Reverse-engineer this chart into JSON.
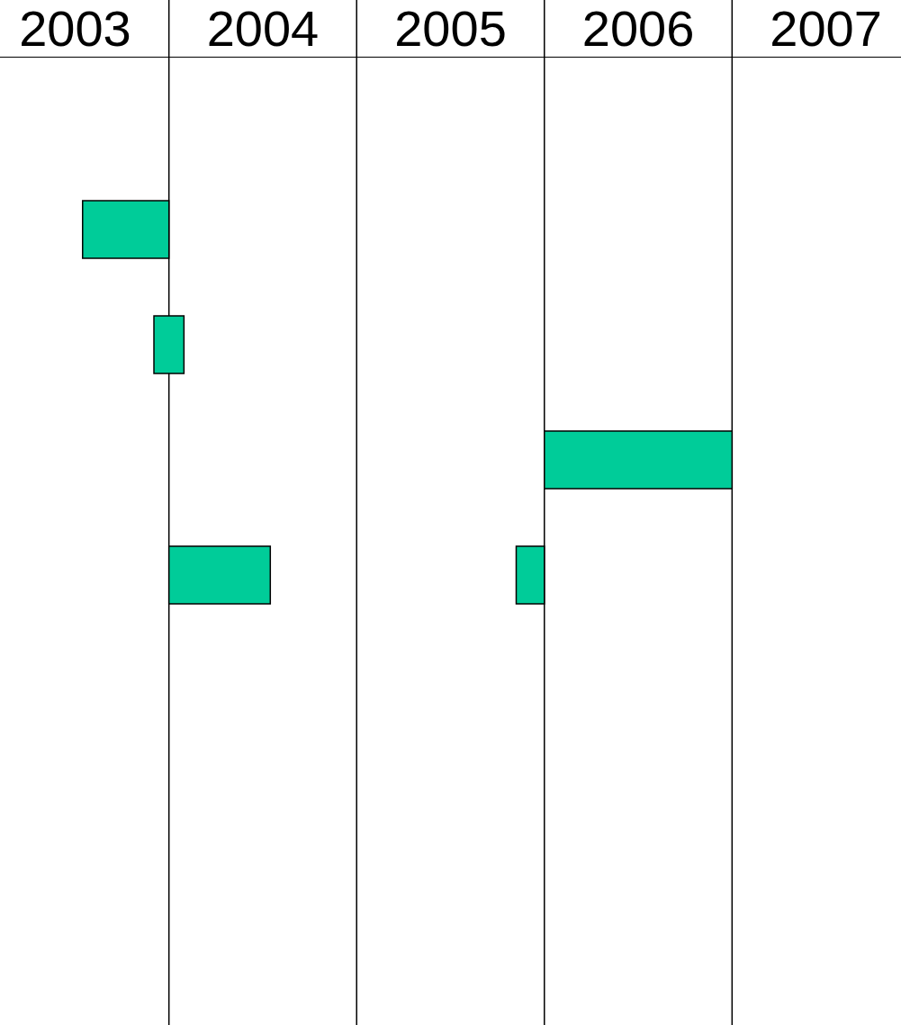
{
  "chart_data": {
    "type": "bar",
    "orientation": "horizontal",
    "categories": [
      null,
      null,
      null,
      null,
      null,
      null,
      null,
      null
    ],
    "series": [
      {
        "color": "#00cc99",
        "values": [
          null,
          0.46,
          0.16,
          1,
          0.54,
          null,
          null,
          null
        ],
        "base": [
          null,
          2003.54,
          2003.92,
          2006,
          2004,
          null,
          null,
          null
        ]
      },
      {
        "color": "#00cc99",
        "values": [
          null,
          null,
          null,
          null,
          0.15,
          null,
          null,
          null
        ],
        "base": [
          null,
          null,
          null,
          null,
          2005.85,
          null,
          null,
          null
        ]
      }
    ],
    "xlim": [
      2003.1,
      2007.9
    ],
    "xticks": [
      {
        "value": 2003.5,
        "label": "2003"
      },
      {
        "value": 2004.5,
        "label": "2004"
      },
      {
        "value": 2005.5,
        "label": "2005"
      },
      {
        "value": 2006.5,
        "label": "2006"
      },
      {
        "value": 2007.5,
        "label": "2007"
      }
    ],
    "ref_lines": [
      {
        "axis": "x",
        "value": 2004
      },
      {
        "axis": "x",
        "value": 2005
      },
      {
        "axis": "x",
        "value": 2006
      },
      {
        "axis": "x",
        "value": 2007
      }
    ]
  }
}
